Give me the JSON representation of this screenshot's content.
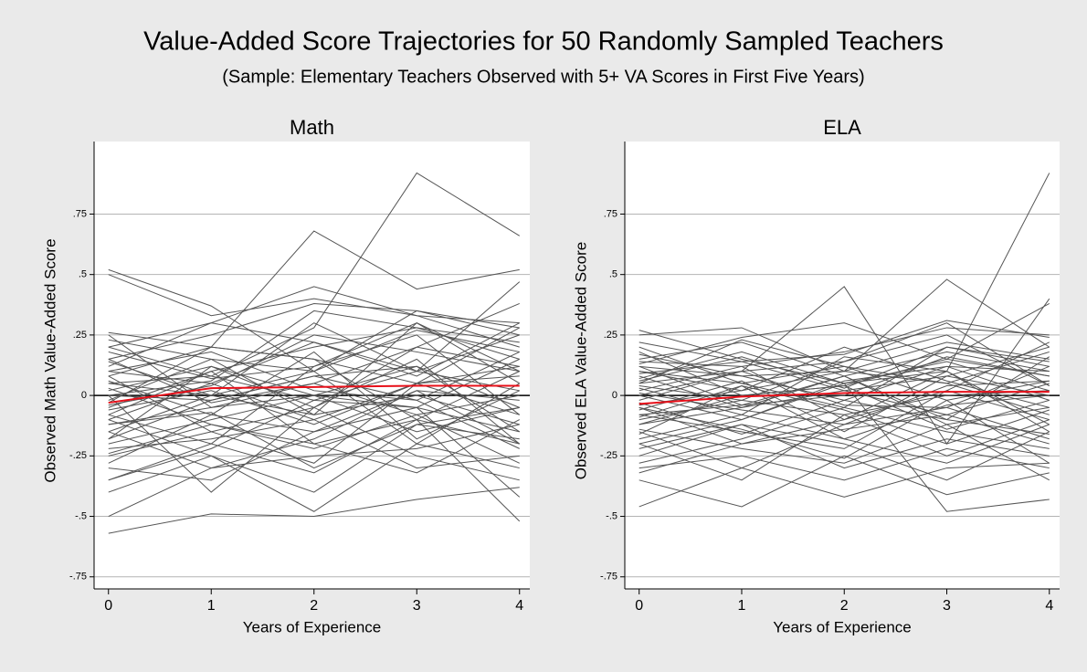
{
  "title": "Value-Added Score Trajectories for 50 Randomly Sampled Teachers",
  "subtitle": "(Sample: Elementary Teachers Observed with 5+ VA Scores in First Five Years)",
  "chart_data": [
    {
      "type": "line",
      "title": "Math",
      "ylabel": "Observed Math Value-Added Score",
      "xlabel": "Years of Experience",
      "x": [
        0,
        1,
        2,
        3,
        4
      ],
      "xlim": [
        -0.14,
        4.1
      ],
      "ylim": [
        -0.8,
        1.05
      ],
      "xticks": [
        0,
        1,
        2,
        3,
        4
      ],
      "yticks": [
        {
          "value": -0.75,
          "label": "-.75"
        },
        {
          "value": -0.5,
          "label": "-.5"
        },
        {
          "value": -0.25,
          "label": "-.25"
        },
        0,
        {
          "value": 0.25,
          "label": ".25"
        },
        {
          "value": 0.5,
          "label": ".5"
        },
        {
          "value": 0.75,
          "label": ".75"
        }
      ],
      "grid": true,
      "zero_line_color": "#000000",
      "color": "#555555",
      "series": [
        {
          "values": [
            0.52,
            0.37,
            0.1,
            0.35,
            0.28
          ]
        },
        {
          "values": [
            -0.57,
            -0.49,
            -0.5,
            -0.43,
            -0.38
          ]
        },
        {
          "values": [
            0.5,
            0.33,
            0.4,
            0.33,
            0.3
          ]
        },
        {
          "values": [
            0.05,
            0.08,
            0.28,
            0.92,
            0.66
          ]
        },
        {
          "values": [
            0.26,
            0.2,
            0.68,
            0.44,
            0.52
          ]
        },
        {
          "values": [
            -0.35,
            -0.2,
            -0.32,
            -0.1,
            -0.52
          ]
        },
        {
          "values": [
            0.2,
            0.3,
            0.45,
            0.33,
            0.2
          ]
        },
        {
          "values": [
            -0.1,
            0.05,
            0.22,
            0.1,
            0.47
          ]
        },
        {
          "values": [
            0.0,
            -0.4,
            -0.05,
            0.2,
            0.38
          ]
        },
        {
          "values": [
            -0.4,
            -0.25,
            -0.48,
            -0.2,
            -0.3
          ]
        },
        {
          "values": [
            0.15,
            0.25,
            0.38,
            0.35,
            0.25
          ]
        },
        {
          "values": [
            -0.05,
            0.1,
            0.2,
            0.28,
            0.15
          ]
        },
        {
          "values": [
            -0.25,
            -0.15,
            -0.05,
            -0.25,
            -0.35
          ]
        },
        {
          "values": [
            0.23,
            0.15,
            0.1,
            0.27,
            0.18
          ]
        },
        {
          "values": [
            -0.15,
            -0.3,
            -0.18,
            0.02,
            -0.2
          ]
        },
        {
          "values": [
            0.1,
            0.05,
            -0.1,
            0.05,
            0.12
          ]
        },
        {
          "values": [
            -0.2,
            -0.1,
            0.0,
            -0.15,
            -0.05
          ]
        },
        {
          "values": [
            0.05,
            0.0,
            0.3,
            0.1,
            0.25
          ]
        },
        {
          "values": [
            -0.08,
            0.1,
            -0.2,
            -0.32,
            -0.1
          ]
        },
        {
          "values": [
            -0.3,
            -0.35,
            -0.15,
            -0.05,
            -0.42
          ]
        },
        {
          "values": [
            0.18,
            0.07,
            0.12,
            0.3,
            0.05
          ]
        },
        {
          "values": [
            -0.12,
            -0.05,
            0.05,
            -0.08,
            0.0
          ]
        },
        {
          "values": [
            0.02,
            0.12,
            -0.05,
            0.15,
            -0.2
          ]
        },
        {
          "values": [
            -0.03,
            0.2,
            0.15,
            -0.1,
            0.1
          ]
        },
        {
          "values": [
            -0.5,
            -0.3,
            -0.25,
            -0.22,
            -0.12
          ]
        },
        {
          "values": [
            0.08,
            -0.15,
            -0.28,
            0.05,
            -0.08
          ]
        },
        {
          "values": [
            -0.18,
            -0.02,
            0.08,
            -0.02,
            -0.22
          ]
        },
        {
          "values": [
            0.12,
            0.3,
            0.22,
            0.08,
            0.3
          ]
        },
        {
          "values": [
            -0.22,
            -0.18,
            -0.1,
            -0.3,
            -0.25
          ]
        },
        {
          "values": [
            0.0,
            0.06,
            0.35,
            0.28,
            0.22
          ]
        },
        {
          "values": [
            -0.1,
            -0.25,
            -0.4,
            -0.12,
            -0.18
          ]
        },
        {
          "values": [
            0.25,
            -0.05,
            0.0,
            0.12,
            -0.05
          ]
        },
        {
          "values": [
            -0.06,
            0.02,
            -0.12,
            0.05,
            0.08
          ]
        },
        {
          "values": [
            0.06,
            -0.08,
            0.18,
            -0.18,
            0.02
          ]
        },
        {
          "values": [
            -0.35,
            -0.22,
            -0.02,
            -0.05,
            -0.15
          ]
        },
        {
          "values": [
            0.15,
            -0.03,
            0.05,
            0.2,
            0.12
          ]
        },
        {
          "values": [
            -0.02,
            0.15,
            -0.08,
            0.0,
            -0.12
          ]
        },
        {
          "values": [
            -0.15,
            0.0,
            0.1,
            -0.2,
            0.05
          ]
        },
        {
          "values": [
            0.03,
            -0.12,
            -0.22,
            -0.08,
            -0.28
          ]
        },
        {
          "values": [
            -0.28,
            -0.08,
            -0.15,
            0.02,
            -0.02
          ]
        },
        {
          "values": [
            0.1,
            0.18,
            0.02,
            -0.02,
            0.18
          ]
        },
        {
          "values": [
            -0.08,
            -0.2,
            0.12,
            0.25,
            -0.08
          ]
        },
        {
          "values": [
            0.2,
            0.08,
            -0.02,
            0.1,
            0.02
          ]
        },
        {
          "values": [
            -0.04,
            0.04,
            0.25,
            0.18,
            0.1
          ]
        },
        {
          "values": [
            -0.24,
            -0.12,
            -0.2,
            -0.1,
            -0.2
          ]
        },
        {
          "values": [
            0.08,
            0.2,
            0.15,
            0.05,
            0.28
          ]
        },
        {
          "values": [
            -0.12,
            -0.07,
            -0.3,
            -0.12,
            -0.05
          ]
        },
        {
          "values": [
            0.0,
            -0.02,
            0.08,
            0.12,
            -0.15
          ]
        },
        {
          "values": [
            -0.18,
            0.12,
            0.0,
            -0.05,
            0.15
          ]
        },
        {
          "values": [
            0.14,
            0.0,
            -0.08,
            0.3,
            0.1
          ]
        },
        {
          "color": "#e8101a",
          "values": [
            -0.03,
            0.03,
            0.035,
            0.04,
            0.04
          ]
        }
      ]
    },
    {
      "type": "line",
      "title": "ELA",
      "ylabel": "Observed ELA Value-Added Score",
      "xlabel": "Years of Experience",
      "x": [
        0,
        1,
        2,
        3,
        4
      ],
      "xlim": [
        -0.14,
        4.1
      ],
      "ylim": [
        -0.8,
        1.05
      ],
      "xticks": [
        0,
        1,
        2,
        3,
        4
      ],
      "yticks": [
        {
          "value": -0.75,
          "label": "-.75"
        },
        {
          "value": -0.5,
          "label": "-.5"
        },
        {
          "value": -0.25,
          "label": "-.25"
        },
        0,
        {
          "value": 0.25,
          "label": ".25"
        },
        {
          "value": 0.5,
          "label": ".5"
        },
        {
          "value": 0.75,
          "label": ".75"
        }
      ],
      "grid": true,
      "zero_line_color": "#000000",
      "color": "#555555",
      "series": [
        {
          "values": [
            0.27,
            0.15,
            0.05,
            0.1,
            0.92
          ]
        },
        {
          "values": [
            -0.46,
            -0.3,
            -0.42,
            -0.3,
            -0.28
          ]
        },
        {
          "values": [
            0.25,
            0.28,
            0.1,
            0.48,
            0.2
          ]
        },
        {
          "values": [
            0.0,
            0.1,
            0.45,
            -0.2,
            0.4
          ]
        },
        {
          "values": [
            -0.35,
            -0.46,
            -0.25,
            -0.41,
            -0.32
          ]
        },
        {
          "values": [
            0.13,
            0.24,
            0.3,
            0.15,
            0.38
          ]
        },
        {
          "values": [
            -0.2,
            -0.1,
            0.05,
            -0.48,
            -0.43
          ]
        },
        {
          "values": [
            0.22,
            0.14,
            0.17,
            0.31,
            0.24
          ]
        },
        {
          "values": [
            -0.05,
            -0.2,
            -0.1,
            0.1,
            -0.15
          ]
        },
        {
          "values": [
            0.1,
            0.05,
            -0.05,
            0.2,
            0.12
          ]
        },
        {
          "values": [
            -0.3,
            -0.25,
            -0.35,
            -0.22,
            -0.3
          ]
        },
        {
          "values": [
            0.05,
            0.23,
            0.12,
            0.05,
            0.18
          ]
        },
        {
          "values": [
            -0.12,
            -0.05,
            0.08,
            -0.12,
            -0.05
          ]
        },
        {
          "values": [
            0.18,
            0.0,
            0.04,
            0.15,
            0.08
          ]
        },
        {
          "values": [
            -0.08,
            -0.15,
            -0.22,
            0.02,
            -0.1
          ]
        },
        {
          "values": [
            0.02,
            0.12,
            0.18,
            0.28,
            0.25
          ]
        },
        {
          "values": [
            -0.15,
            -0.3,
            -0.12,
            -0.05,
            -0.18
          ]
        },
        {
          "values": [
            0.08,
            -0.05,
            0.02,
            -0.08,
            0.05
          ]
        },
        {
          "values": [
            -0.22,
            -0.12,
            -0.3,
            -0.18,
            -0.25
          ]
        },
        {
          "values": [
            0.12,
            0.08,
            -0.02,
            0.12,
            0.1
          ]
        },
        {
          "values": [
            -0.04,
            0.02,
            0.1,
            0.05,
            -0.08
          ]
        },
        {
          "values": [
            -0.18,
            -0.08,
            -0.18,
            -0.28,
            -0.12
          ]
        },
        {
          "values": [
            0.06,
            0.16,
            0.03,
            0.2,
            0.14
          ]
        },
        {
          "values": [
            -0.1,
            -0.02,
            -0.08,
            0.0,
            0.02
          ]
        },
        {
          "values": [
            0.2,
            0.05,
            0.12,
            -0.02,
            0.06
          ]
        },
        {
          "values": [
            -0.28,
            -0.18,
            -0.05,
            -0.15,
            -0.22
          ]
        },
        {
          "values": [
            0.0,
            -0.1,
            0.06,
            0.12,
            -0.02
          ]
        },
        {
          "values": [
            -0.06,
            0.06,
            -0.15,
            0.08,
            0.0
          ]
        },
        {
          "values": [
            0.15,
            0.22,
            0.08,
            -0.1,
            0.16
          ]
        },
        {
          "values": [
            -0.14,
            -0.22,
            -0.28,
            -0.12,
            -0.35
          ]
        },
        {
          "values": [
            0.04,
            -0.02,
            0.14,
            0.25,
            0.04
          ]
        },
        {
          "values": [
            -0.02,
            0.1,
            -0.04,
            -0.05,
            0.12
          ]
        },
        {
          "values": [
            -0.25,
            -0.12,
            -0.2,
            -0.35,
            -0.15
          ]
        },
        {
          "values": [
            0.1,
            0.02,
            0.2,
            0.06,
            -0.05
          ]
        },
        {
          "values": [
            -0.08,
            -0.04,
            0.0,
            0.16,
            0.08
          ]
        },
        {
          "values": [
            0.14,
            0.12,
            -0.1,
            0.02,
            0.22
          ]
        },
        {
          "values": [
            -0.16,
            0.04,
            -0.06,
            -0.2,
            -0.06
          ]
        },
        {
          "values": [
            0.03,
            -0.08,
            0.16,
            0.1,
            -0.12
          ]
        },
        {
          "values": [
            -0.32,
            -0.2,
            -0.14,
            -0.08,
            -0.2
          ]
        },
        {
          "values": [
            0.07,
            0.18,
            0.05,
            0.14,
            0.02
          ]
        },
        {
          "values": [
            -0.05,
            -0.14,
            -0.26,
            -0.02,
            -0.28
          ]
        },
        {
          "values": [
            0.17,
            0.08,
            0.1,
            0.22,
            0.15
          ]
        },
        {
          "values": [
            -0.12,
            0.0,
            0.04,
            -0.14,
            -0.02
          ]
        },
        {
          "values": [
            0.01,
            -0.06,
            -0.12,
            0.04,
            0.06
          ]
        },
        {
          "values": [
            -0.2,
            -0.35,
            -0.08,
            -0.25,
            -0.1
          ]
        },
        {
          "values": [
            0.09,
            0.14,
            0.02,
            0.08,
            0.2
          ]
        },
        {
          "values": [
            -0.03,
            -0.16,
            -0.02,
            -0.1,
            -0.16
          ]
        },
        {
          "values": [
            0.12,
            -0.04,
            0.08,
            0.18,
            0.1
          ]
        },
        {
          "values": [
            -0.09,
            0.04,
            -0.18,
            -0.04,
            0.0
          ]
        },
        {
          "values": [
            0.05,
            0.1,
            0.14,
            0.3,
            0.04
          ]
        },
        {
          "color": "#e8101a",
          "values": [
            -0.035,
            -0.005,
            0.01,
            0.015,
            0.015
          ]
        }
      ]
    }
  ]
}
